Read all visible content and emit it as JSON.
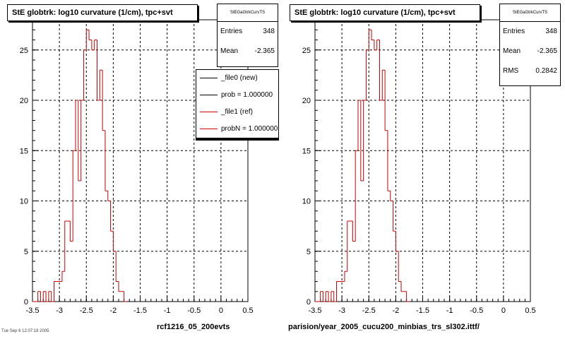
{
  "chart_data": [
    {
      "type": "bar",
      "title": "StE globtrk: log10 curvature (1/cm), tpc+svt",
      "xlabel": "rcf1216_05_200evts",
      "ylabel": "",
      "xlim": [
        -3.5,
        0.5
      ],
      "ylim": [
        0,
        28
      ],
      "x_ticks": [
        "-3.5",
        "-3",
        "-2.5",
        "-2",
        "-1.5",
        "-1",
        "-0.5",
        "0",
        "0.5"
      ],
      "y_ticks": [
        "0",
        "5",
        "10",
        "15",
        "20",
        "25"
      ],
      "grid": true,
      "bin_start": -3.5,
      "bin_width": 0.05,
      "series": [
        {
          "name": "_file0 (new)",
          "color": "#000000",
          "values": []
        },
        {
          "name": "_file1 (ref)",
          "color": "#cc0000",
          "values": [
            0,
            0,
            1,
            0,
            1,
            0,
            1,
            0,
            2,
            2,
            2,
            3,
            8,
            8,
            6,
            15,
            20,
            12,
            20,
            25,
            27,
            26,
            25,
            26,
            20,
            23,
            17,
            11,
            10,
            7,
            5,
            2,
            1,
            1,
            0
          ]
        }
      ],
      "stats": {
        "name": "StEGaGtrkCurvTS",
        "entries_label": "Entries",
        "entries": "348",
        "mean_label": "Mean",
        "mean": "-2.365"
      },
      "legend": {
        "placement": "top-right",
        "entries": [
          "_file0 (new)",
          "prob = 1.000000",
          "_file1 (ref)",
          "probN = 1.000000"
        ]
      }
    },
    {
      "type": "bar",
      "title": "StE globtrk: log10 curvature (1/cm), tpc+svt",
      "xlabel": "parision/year_2005_cucu200_minbias_trs_sl302.ittf/",
      "ylabel": "",
      "xlim": [
        -3.5,
        0.5
      ],
      "ylim": [
        0,
        28
      ],
      "x_ticks": [
        "-3.5",
        "-3",
        "-2.5",
        "-2",
        "-1.5",
        "-1",
        "-0.5",
        "0",
        "0.5"
      ],
      "y_ticks": [
        "0",
        "5",
        "10",
        "15",
        "20",
        "25"
      ],
      "grid": true,
      "bin_start": -3.5,
      "bin_width": 0.05,
      "series": [
        {
          "name": "",
          "color": "#cc0000",
          "values": [
            0,
            0,
            1,
            0,
            1,
            0,
            1,
            0,
            2,
            2,
            2,
            3,
            8,
            8,
            6,
            15,
            20,
            12,
            20,
            25,
            27,
            26,
            25,
            26,
            20,
            23,
            17,
            11,
            10,
            7,
            5,
            2,
            1,
            1,
            0
          ]
        }
      ],
      "stats": {
        "name": "StEGaGtrkCurvTS",
        "entries_label": "Entries",
        "entries": "348",
        "mean_label": "Mean",
        "mean": "-2.365",
        "rms_label": "RMS",
        "rms": "0.2842"
      }
    }
  ],
  "footer_date": "Tue Sep 6 12:07:18 2005"
}
